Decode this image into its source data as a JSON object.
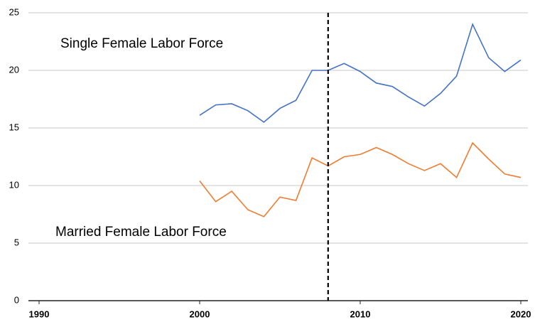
{
  "chart_data": {
    "type": "line",
    "x": [
      2000,
      2001,
      2002,
      2003,
      2004,
      2005,
      2006,
      2007,
      2008,
      2009,
      2010,
      2011,
      2012,
      2013,
      2014,
      2015,
      2016,
      2017,
      2018,
      2019,
      2020
    ],
    "series": [
      {
        "name": "Single Female Labor Force",
        "color": "#4472c4",
        "values": [
          16.1,
          17.0,
          17.1,
          16.5,
          15.5,
          16.7,
          17.4,
          20.0,
          20.0,
          20.6,
          19.9,
          18.9,
          18.6,
          17.7,
          16.9,
          18.0,
          19.5,
          24.0,
          21.1,
          19.9,
          20.9
        ]
      },
      {
        "name": "Married Female Labor Force",
        "color": "#ed7d31",
        "values": [
          10.4,
          8.6,
          9.5,
          7.9,
          7.3,
          9.0,
          8.7,
          12.4,
          11.7,
          12.5,
          12.7,
          13.3,
          12.7,
          11.9,
          11.3,
          11.9,
          10.7,
          13.7,
          12.3,
          11.0,
          10.7
        ]
      }
    ],
    "xlim": [
      1990,
      2020
    ],
    "xticks": [
      1990,
      2000,
      2010,
      2020
    ],
    "ylim": [
      0,
      25
    ],
    "yticks": [
      0,
      5,
      10,
      15,
      20,
      25
    ],
    "grid": true,
    "vline": 2008
  }
}
